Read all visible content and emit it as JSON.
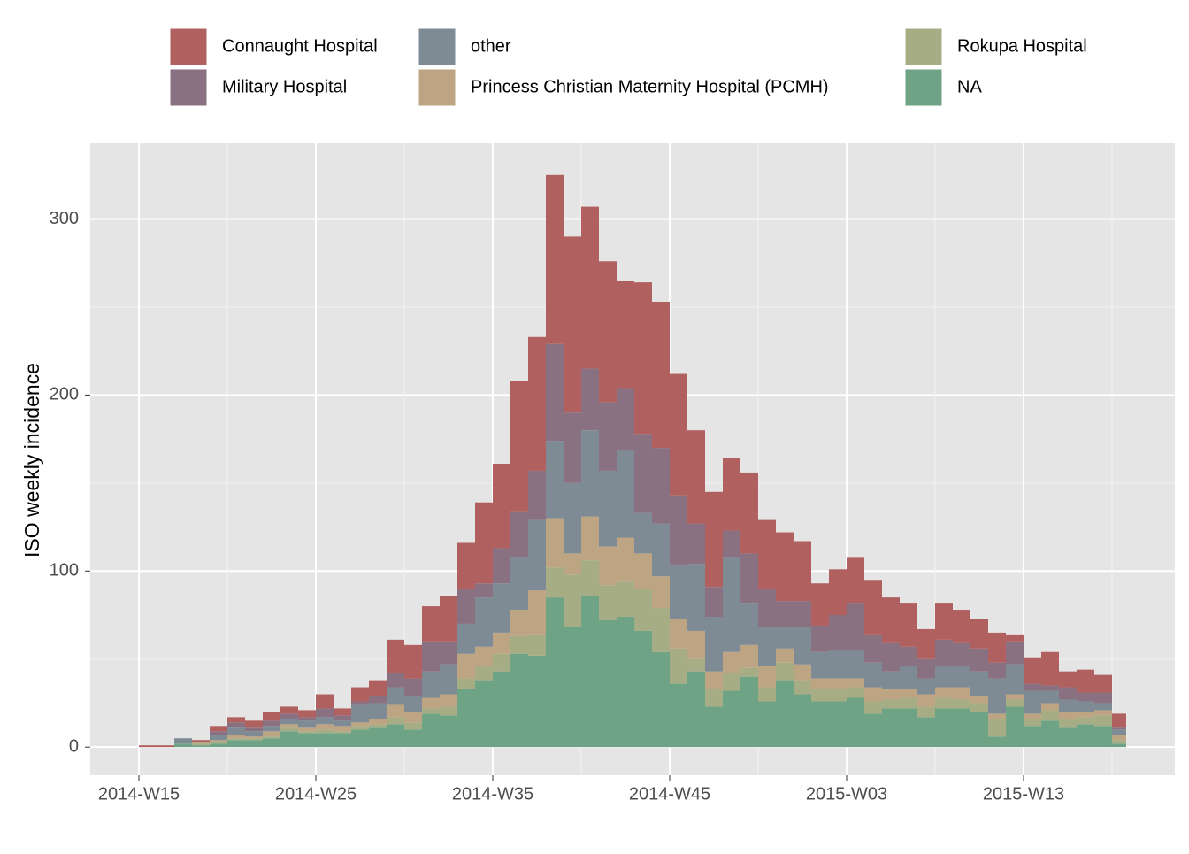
{
  "chart_data": {
    "type": "bar",
    "stacked": true,
    "y_label": "ISO weekly incidence",
    "categories": [
      "2014-W15",
      null,
      null,
      null,
      null,
      null,
      null,
      null,
      null,
      null,
      "2014-W25",
      null,
      null,
      null,
      null,
      null,
      null,
      null,
      null,
      null,
      "2014-W35",
      null,
      null,
      null,
      null,
      null,
      null,
      null,
      null,
      null,
      "2014-W45",
      null,
      null,
      null,
      null,
      null,
      null,
      null,
      null,
      null,
      "2015-W03",
      null,
      null,
      null,
      null,
      null,
      null,
      null,
      null,
      null,
      "2015-W13",
      null,
      null,
      null,
      null,
      null
    ],
    "series": [
      {
        "name": "Connaught Hospital",
        "color": "#b0605f",
        "values": [
          1,
          1,
          0,
          1,
          3,
          3,
          4,
          5,
          4,
          4,
          8,
          4,
          8,
          9,
          19,
          19,
          20,
          26,
          26,
          46,
          48,
          74,
          76,
          96,
          100,
          92,
          80,
          61,
          86,
          83,
          69,
          53,
          54,
          41,
          46,
          39,
          39,
          34,
          24,
          26,
          26,
          31,
          26,
          25,
          17,
          21,
          19,
          17,
          17,
          4,
          15,
          19,
          9,
          13,
          10,
          8
        ]
      },
      {
        "name": "Military Hospital",
        "color": "#8a7181",
        "values": [
          0,
          0,
          0,
          0,
          2,
          3,
          2,
          3,
          3,
          2,
          5,
          3,
          2,
          4,
          8,
          10,
          17,
          13,
          20,
          8,
          20,
          26,
          28,
          55,
          40,
          35,
          39,
          35,
          45,
          43,
          40,
          23,
          17,
          15,
          28,
          22,
          15,
          15,
          15,
          20,
          27,
          16,
          16,
          11,
          11,
          15,
          13,
          13,
          9,
          13,
          4,
          3,
          7,
          5,
          6,
          1
        ]
      },
      {
        "name": "other",
        "color": "#7f8b94",
        "values": [
          0,
          0,
          3,
          0,
          3,
          4,
          3,
          3,
          3,
          4,
          4,
          3,
          10,
          9,
          10,
          9,
          15,
          17,
          17,
          28,
          28,
          30,
          40,
          44,
          40,
          49,
          43,
          50,
          23,
          30,
          30,
          38,
          31,
          54,
          24,
          22,
          12,
          21,
          15,
          16,
          16,
          14,
          10,
          13,
          9,
          12,
          12,
          14,
          20,
          17,
          13,
          7,
          7,
          6,
          4,
          3
        ]
      },
      {
        "name": "Princess Christian Maternity Hospital (PCMH)",
        "color": "#bda583",
        "values": [
          0,
          0,
          0,
          1,
          1,
          2,
          1,
          3,
          2,
          2,
          3,
          3,
          2,
          3,
          7,
          6,
          6,
          7,
          14,
          11,
          12,
          15,
          25,
          28,
          12,
          25,
          22,
          25,
          20,
          18,
          17,
          16,
          10,
          12,
          13,
          12,
          8,
          9,
          6,
          6,
          5,
          8,
          6,
          5,
          7,
          6,
          7,
          4,
          3,
          3,
          3,
          4,
          4,
          3,
          3,
          3
        ]
      },
      {
        "name": "Rokupa Hospital",
        "color": "#a6ad85",
        "values": [
          0,
          0,
          0,
          1,
          1,
          1,
          1,
          1,
          2,
          1,
          2,
          1,
          2,
          2,
          4,
          4,
          3,
          5,
          6,
          8,
          10,
          10,
          12,
          17,
          30,
          20,
          20,
          20,
          24,
          25,
          20,
          7,
          10,
          10,
          5,
          8,
          10,
          8,
          7,
          7,
          6,
          7,
          5,
          6,
          6,
          6,
          5,
          5,
          10,
          4,
          4,
          6,
          5,
          4,
          6,
          2
        ]
      },
      {
        "name": "NA",
        "color": "#6fa386",
        "values": [
          0,
          0,
          2,
          1,
          2,
          4,
          4,
          5,
          9,
          8,
          8,
          8,
          10,
          11,
          13,
          10,
          19,
          18,
          33,
          38,
          43,
          53,
          52,
          85,
          68,
          86,
          72,
          74,
          66,
          54,
          36,
          43,
          23,
          32,
          40,
          26,
          38,
          30,
          26,
          26,
          28,
          19,
          22,
          22,
          17,
          22,
          22,
          20,
          6,
          23,
          12,
          15,
          11,
          13,
          12,
          2
        ]
      }
    ],
    "ylim": [
      -16,
      343
    ],
    "yticks": [
      0,
      100,
      200,
      300
    ],
    "grid": true
  }
}
